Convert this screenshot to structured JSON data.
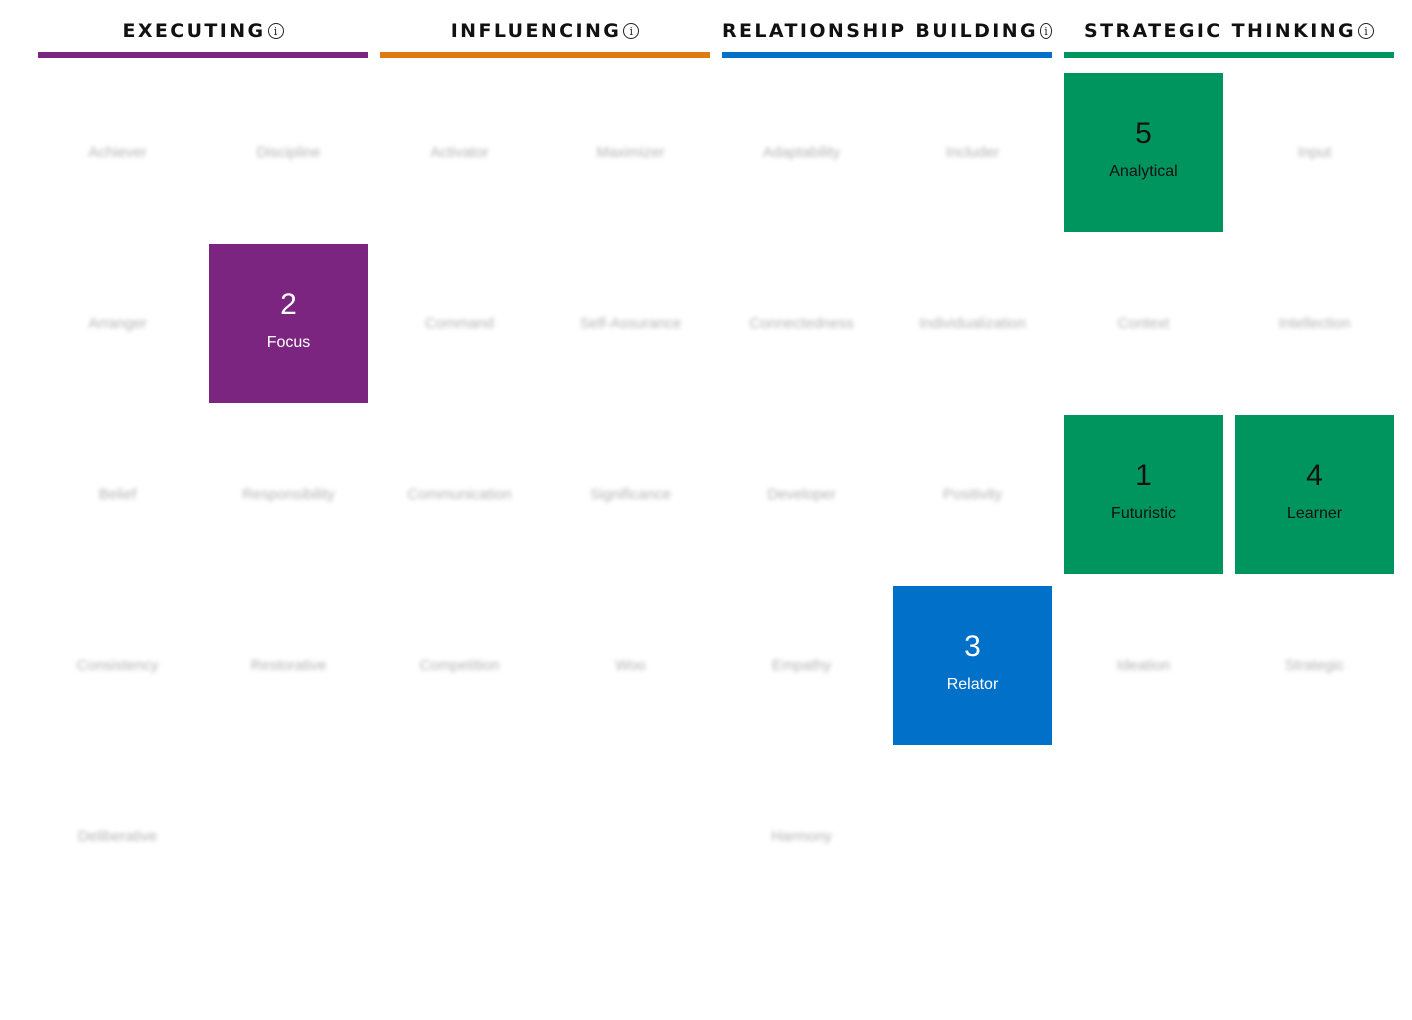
{
  "domains": [
    {
      "title": "EXECUTING",
      "color": "#7b2580",
      "text_color": "#ffffff",
      "themes": [
        {
          "name": "Achiever",
          "rank": null
        },
        {
          "name": "Discipline",
          "rank": null
        },
        {
          "name": "Arranger",
          "rank": null
        },
        {
          "name": "Focus",
          "rank": "2"
        },
        {
          "name": "Belief",
          "rank": null
        },
        {
          "name": "Responsibility",
          "rank": null
        },
        {
          "name": "Consistency",
          "rank": null
        },
        {
          "name": "Restorative",
          "rank": null
        },
        {
          "name": "Deliberative",
          "rank": null
        }
      ]
    },
    {
      "title": "INFLUENCING",
      "color": "#e07a10",
      "text_color": "#ffffff",
      "themes": [
        {
          "name": "Activator",
          "rank": null
        },
        {
          "name": "Maximizer",
          "rank": null
        },
        {
          "name": "Command",
          "rank": null
        },
        {
          "name": "Self-Assurance",
          "rank": null
        },
        {
          "name": "Communication",
          "rank": null
        },
        {
          "name": "Significance",
          "rank": null
        },
        {
          "name": "Competition",
          "rank": null
        },
        {
          "name": "Woo",
          "rank": null
        }
      ]
    },
    {
      "title": "RELATIONSHIP BUILDING",
      "color": "#0070c9",
      "text_color": "#ffffff",
      "themes": [
        {
          "name": "Adaptability",
          "rank": null
        },
        {
          "name": "Includer",
          "rank": null
        },
        {
          "name": "Connectedness",
          "rank": null
        },
        {
          "name": "Individualization",
          "rank": null
        },
        {
          "name": "Developer",
          "rank": null
        },
        {
          "name": "Positivity",
          "rank": null
        },
        {
          "name": "Empathy",
          "rank": null
        },
        {
          "name": "Relator",
          "rank": "3"
        },
        {
          "name": "Harmony",
          "rank": null
        }
      ]
    },
    {
      "title": "STRATEGIC THINKING",
      "color": "#00945e",
      "text_color": "#111111",
      "themes": [
        {
          "name": "Analytical",
          "rank": "5"
        },
        {
          "name": "Input",
          "rank": null
        },
        {
          "name": "Context",
          "rank": null
        },
        {
          "name": "Intellection",
          "rank": null
        },
        {
          "name": "Futuristic",
          "rank": "1"
        },
        {
          "name": "Learner",
          "rank": "4"
        },
        {
          "name": "Ideation",
          "rank": null
        },
        {
          "name": "Strategic",
          "rank": null
        }
      ]
    }
  ],
  "icons": {
    "info": "info-icon",
    "info_glyph": "i"
  }
}
